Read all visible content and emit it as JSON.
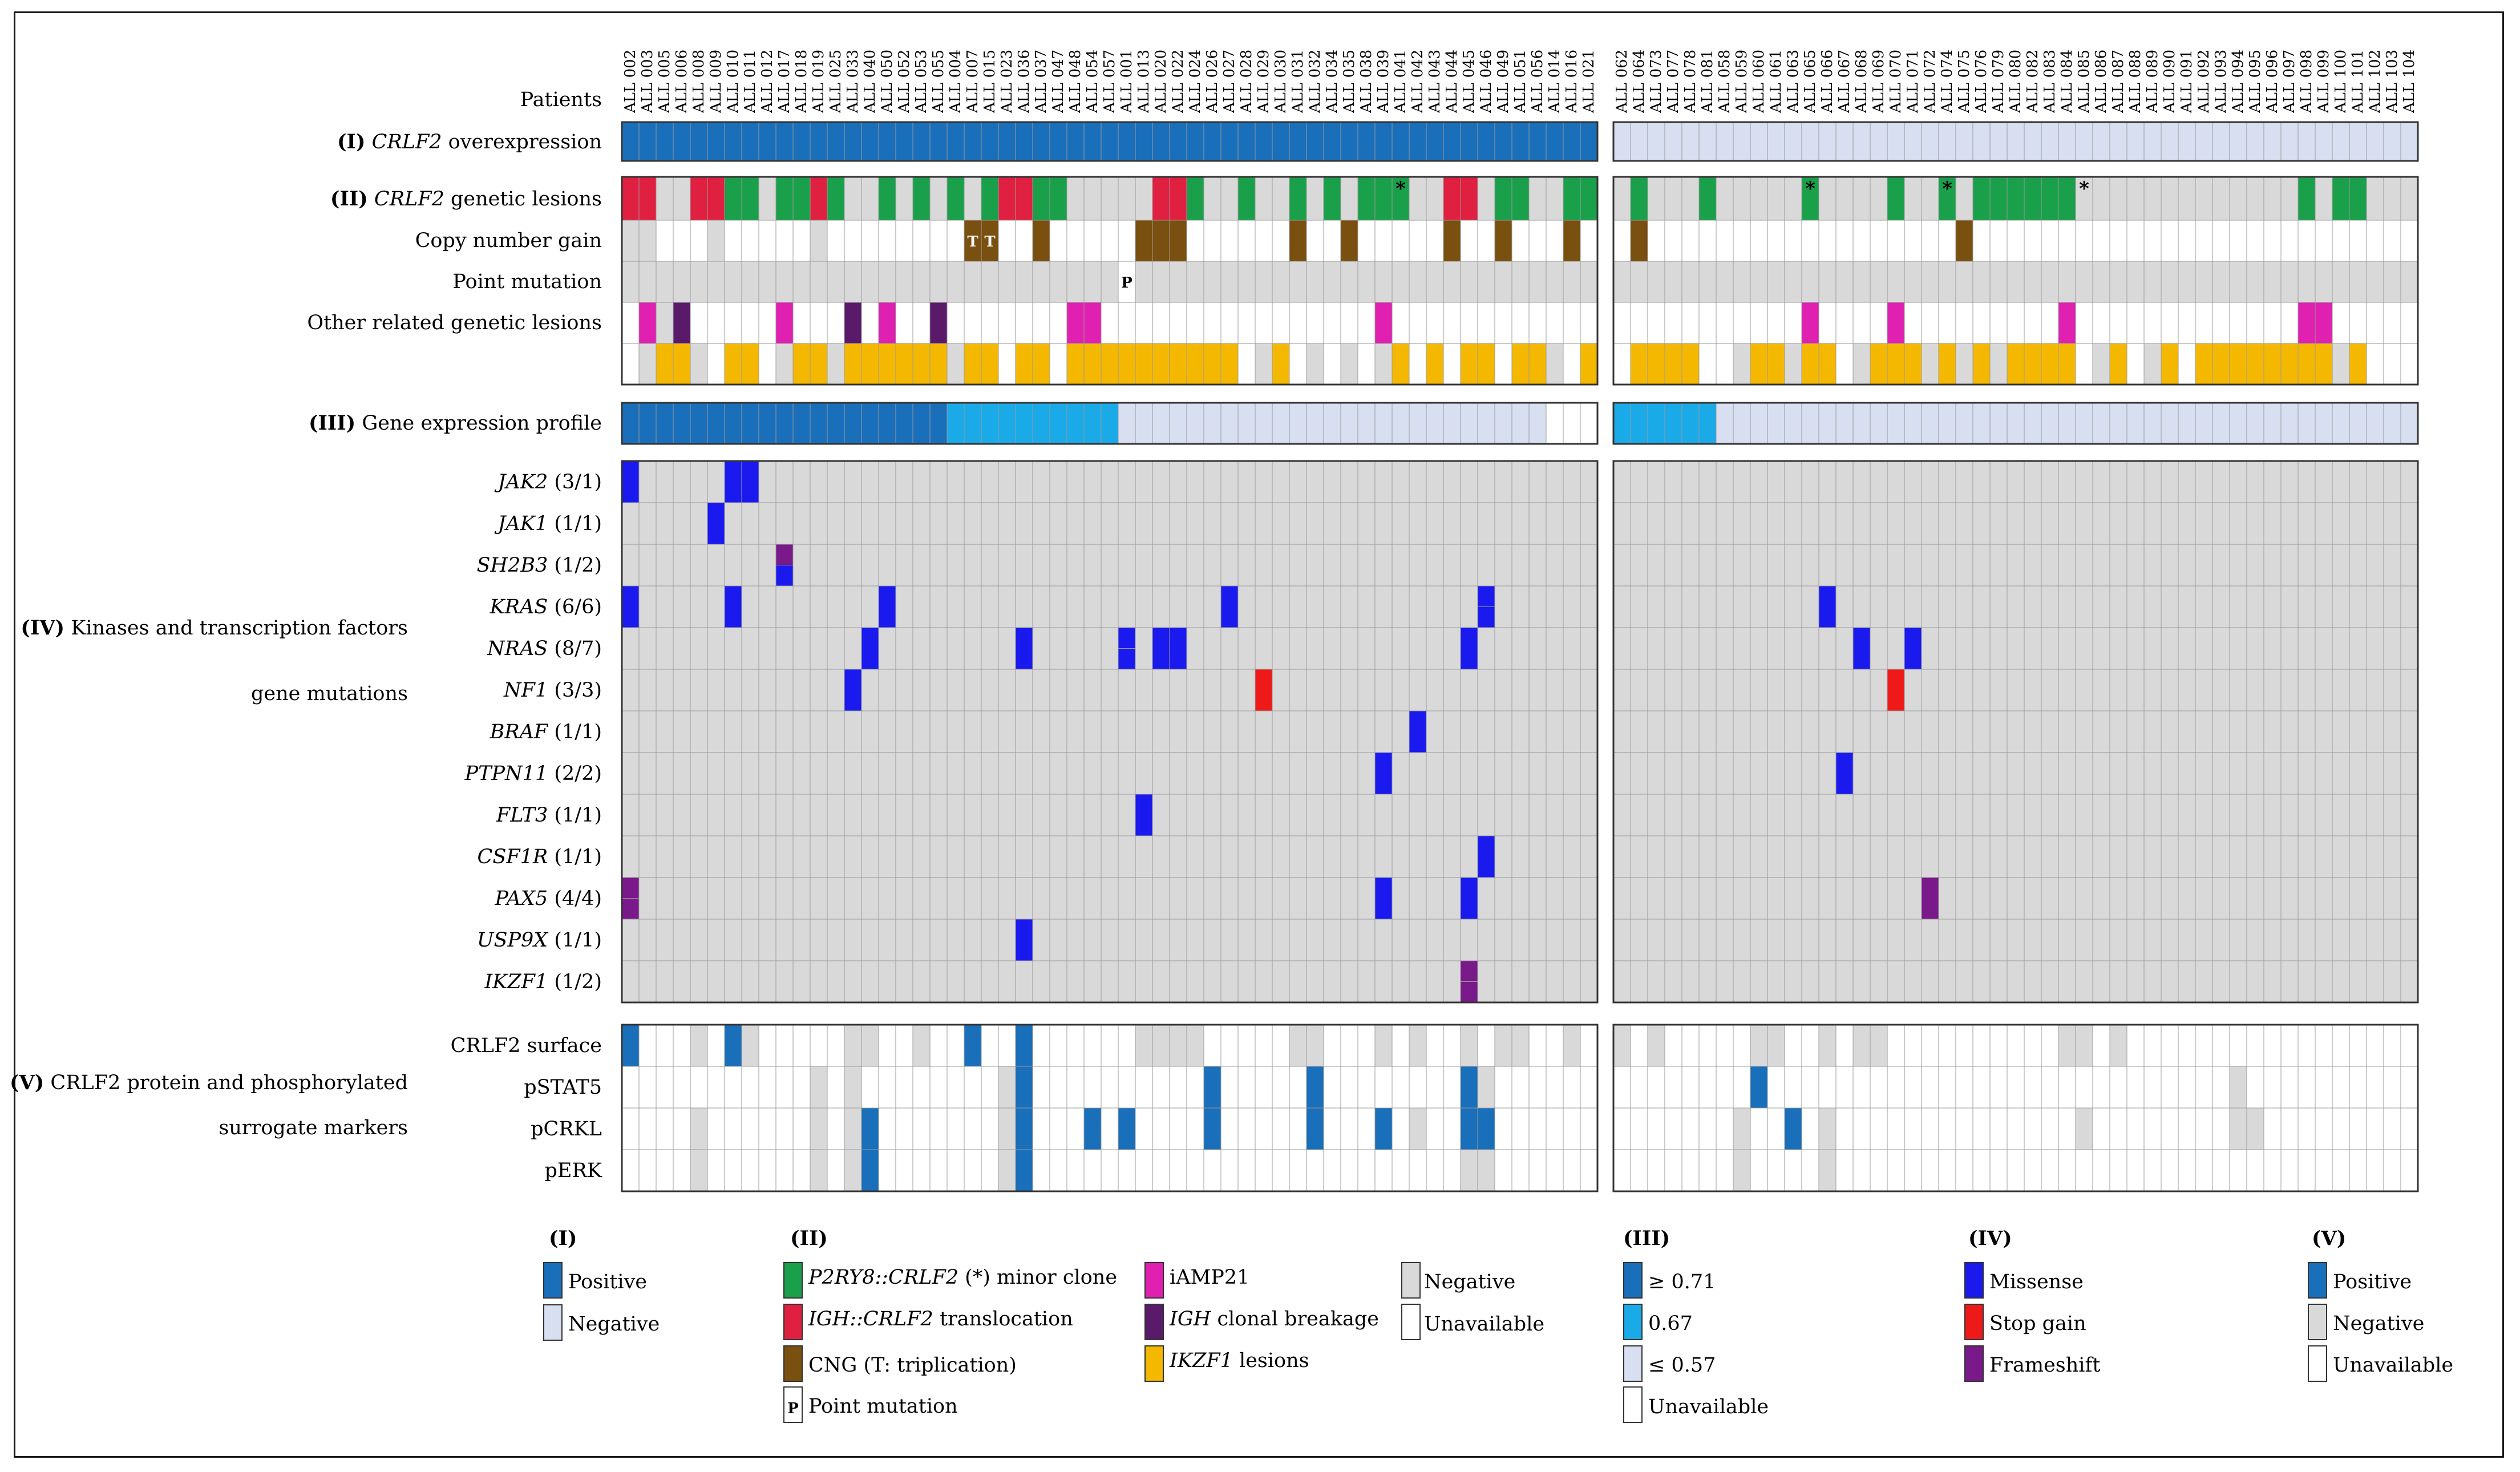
{
  "colors": {
    "crlf2_pos": "#1a6fba",
    "crlf2_neg": "#d8dff0",
    "gep_high": "#1a6fba",
    "gep_mid": "#1aaae8",
    "gep_low": "#d8dff0",
    "p2ry8": "#1aa04a",
    "igh_crlf2": "#e02040",
    "cng": "#7a5010",
    "iamp21": "#e020b0",
    "igh_break": "#5a1a6a",
    "ikzf1": "#f5b800",
    "missense": "#1a1aee",
    "stopgain": "#ee1a1a",
    "frameshift": "#7a1a8a",
    "gray": "#d9d9d9",
    "white": "#ffffff",
    "protein_pos": "#1a6fba"
  },
  "patients": {
    "label": "Patients",
    "group1": [
      "ALL 002",
      "ALL 003",
      "ALL 005",
      "ALL 006",
      "ALL 008",
      "ALL 009",
      "ALL 010",
      "ALL 011",
      "ALL 012",
      "ALL 017",
      "ALL 018",
      "ALL 019",
      "ALL 025",
      "ALL 033",
      "ALL 040",
      "ALL 050",
      "ALL 052",
      "ALL 053",
      "ALL 055",
      "ALL 004",
      "ALL 007",
      "ALL 015",
      "ALL 023",
      "ALL 036",
      "ALL 037",
      "ALL 047",
      "ALL 048",
      "ALL 054",
      "ALL 057",
      "ALL 001",
      "ALL 013",
      "ALL 020",
      "ALL 022",
      "ALL 024",
      "ALL 026",
      "ALL 027",
      "ALL 028",
      "ALL 029",
      "ALL 030",
      "ALL 031",
      "ALL 032",
      "ALL 034",
      "ALL 035",
      "ALL 038",
      "ALL 039",
      "ALL 041",
      "ALL 042",
      "ALL 043",
      "ALL 044",
      "ALL 045",
      "ALL 046",
      "ALL 049",
      "ALL 051",
      "ALL 056",
      "ALL 014",
      "ALL 016",
      "ALL 021"
    ],
    "group2": [
      "ALL 062",
      "ALL 064",
      "ALL 073",
      "ALL 077",
      "ALL 078",
      "ALL 081",
      "ALL 058",
      "ALL 059",
      "ALL 060",
      "ALL 061",
      "ALL 063",
      "ALL 065",
      "ALL 066",
      "ALL 067",
      "ALL 068",
      "ALL 069",
      "ALL 070",
      "ALL 071",
      "ALL 072",
      "ALL 074",
      "ALL 075",
      "ALL 076",
      "ALL 079",
      "ALL 080",
      "ALL 082",
      "ALL 083",
      "ALL 084",
      "ALL 085",
      "ALL 086",
      "ALL 087",
      "ALL 088",
      "ALL 089",
      "ALL 090",
      "ALL 091",
      "ALL 092",
      "ALL 093",
      "ALL 094",
      "ALL 095",
      "ALL 096",
      "ALL 097",
      "ALL 098",
      "ALL 099",
      "ALL 100",
      "ALL 101",
      "ALL 102",
      "ALL 103",
      "ALL 104"
    ]
  },
  "row_labels": {
    "sec1_num": "(I)",
    "sec1_gene": "CRLF2",
    "sec1_rest": "overexpression",
    "sec2_num": "(II)",
    "sec2_gene": "CRLF2",
    "sec2_rest": "genetic lesions",
    "copy_gain": "Copy number gain",
    "point_mut": "Point mutation",
    "other_related": "Other related genetic lesions",
    "sec3_num": "(III)",
    "sec3_rest": "Gene expression profile",
    "sec4_line1_num": "(IV)",
    "sec4_line1": "Kinases and transcription factors",
    "sec4_line2": "gene mutations",
    "sec5_line1_num": "(V)",
    "sec5_line1": "CRLF2 protein and phosphorylated",
    "sec5_line2": "surrogate markers",
    "genes": [
      {
        "name": "JAK2",
        "count": "(3/1)"
      },
      {
        "name": "JAK1",
        "count": "(1/1)"
      },
      {
        "name": "SH2B3",
        "count": "(1/2)"
      },
      {
        "name": "KRAS",
        "count": "(6/6)"
      },
      {
        "name": "NRAS",
        "count": "(8/7)"
      },
      {
        "name": "NF1",
        "count": "(3/3)"
      },
      {
        "name": "BRAF",
        "count": "(1/1)"
      },
      {
        "name": "PTPN11",
        "count": "(2/2)"
      },
      {
        "name": "FLT3",
        "count": "(1/1)"
      },
      {
        "name": "CSF1R",
        "count": "(1/1)"
      },
      {
        "name": "PAX5",
        "count": "(4/4)"
      },
      {
        "name": "USP9X",
        "count": "(1/1)"
      },
      {
        "name": "IKZF1",
        "count": "(1/2)"
      }
    ],
    "proteins": [
      "CRLF2 surface",
      "pSTAT5",
      "pCRKL",
      "pERK"
    ]
  },
  "chart_data": {
    "type": "heatmap",
    "title": "",
    "n_group1": 57,
    "n_group2": 47,
    "crlf2_overexpression": {
      "group1": "positive",
      "group2": "negative"
    },
    "crlf2_lesions": {
      "group1": "R R W W R R G G W G G R G W W G W G W G W G R R G G W W W W W R R G W W G W W G W G W G G G W W R R W G G W W G G",
      "group2": "W G W W W G W W W W W G W W W W G W W G W G G G G G G W W W W W W W W W W W W W G W G G W W",
      "minor_clone_marks": {
        "group1": [
          45
        ],
        "group2": [
          11,
          19,
          27
        ]
      }
    },
    "copy_number_gain": {
      "group1": "G G W W W G W W W W W G W W W W W W W W T T W W C W W W W W C C C W W W W W W C W W C W W W W W C W W C W W W C W",
      "group2": "W C W W W W W W W W W W W W W W W W W W C W W W W W W W W W W W W W W W W W W W W W W W W W W",
      "triplication_label": "T"
    },
    "point_mutation": {
      "group1_positive_index": 29,
      "label": "P"
    },
    "other_related_iamp21_igh": {
      "group1": "W I G B W W W W W I W W W B W I W W B W W W W W W W I I W W W W W W W W W W W W W W W W I W W W W W W W W W W W W",
      "group2": "W W W W W W W W W W W I W W W W I W W W W W W W W W I W W W W W W W W W W W W W I I W W W W W"
    },
    "other_related_ikzf1": {
      "group1": "W G Y Y G W Y Y W G Y Y G Y Y Y Y Y Y G Y Y W Y Y W Y Y Y Y Y Y Y Y Y Y W G Y W G W G W G Y W Y W Y Y W Y Y G W Y",
      "group2": "W Y Y Y Y W W G Y Y G Y Y W G Y Y Y G Y G Y G Y Y Y Y W G Y W G Y W Y Y Y Y Y Y Y Y G Y W W W"
    },
    "gene_expression_profile": {
      "group1_high": 19,
      "group1_mid": 10,
      "group1_low_until": 54,
      "group1_unavailable": 2,
      "group2_mid": 6
    },
    "mutations": [
      {
        "gene": "JAK2",
        "group1": [
          [
            0,
            "M"
          ],
          [
            6,
            "M"
          ],
          [
            7,
            "M"
          ]
        ],
        "group2": []
      },
      {
        "gene": "JAK1",
        "group1": [
          [
            5,
            "M"
          ]
        ],
        "group2": []
      },
      {
        "gene": "SH2B3",
        "group1": [
          [
            9,
            "F/M"
          ]
        ],
        "group2": []
      },
      {
        "gene": "KRAS",
        "group1": [
          [
            0,
            "M"
          ],
          [
            6,
            "M"
          ],
          [
            15,
            "M"
          ],
          [
            35,
            "M"
          ],
          [
            50,
            "M/M"
          ]
        ],
        "group2": [
          [
            12,
            "M"
          ]
        ]
      },
      {
        "gene": "NRAS",
        "group1": [
          [
            14,
            "M"
          ],
          [
            23,
            "M"
          ],
          [
            29,
            "M/M"
          ],
          [
            31,
            "M"
          ],
          [
            32,
            "M"
          ],
          [
            49,
            "M"
          ]
        ],
        "group2": [
          [
            14,
            "M"
          ],
          [
            17,
            "M"
          ]
        ]
      },
      {
        "gene": "NF1",
        "group1": [
          [
            13,
            "M"
          ],
          [
            37,
            "S"
          ]
        ],
        "group2": [
          [
            16,
            "S"
          ]
        ]
      },
      {
        "gene": "BRAF",
        "group1": [
          [
            46,
            "M"
          ]
        ],
        "group2": []
      },
      {
        "gene": "PTPN11",
        "group1": [
          [
            44,
            "M"
          ]
        ],
        "group2": [
          [
            13,
            "M"
          ]
        ]
      },
      {
        "gene": "FLT3",
        "group1": [
          [
            30,
            "M"
          ]
        ],
        "group2": []
      },
      {
        "gene": "CSF1R",
        "group1": [
          [
            50,
            "M"
          ]
        ],
        "group2": []
      },
      {
        "gene": "PAX5",
        "group1": [
          [
            0,
            "F/F"
          ],
          [
            44,
            "M"
          ],
          [
            49,
            "M"
          ]
        ],
        "group2": [
          [
            18,
            "F"
          ]
        ]
      },
      {
        "gene": "USP9X",
        "group1": [
          [
            23,
            "M"
          ]
        ],
        "group2": []
      },
      {
        "gene": "IKZF1",
        "group1": [
          [
            49,
            "F/F"
          ]
        ],
        "group2": []
      }
    ],
    "protein_markers": [
      {
        "marker": "CRLF2 surface",
        "group1": "P W W W G W P G W W W W W G G W W G W W P W W P W W W W W W G G G G W W W W W G G W W W G W G W W G W G G W W G W",
        "group2": "G W G W W W W W G G W W G W G G W W W W W W W W W W G G W G W W W W W W W W W W W W W W W W W"
      },
      {
        "marker": "pSTAT5",
        "group1": "W W W W W W W W W W W G W G W W W W W W W W G P W W W W W W W W W W P W W W W W P W W W W W W W W P G W W W W W W",
        "group2": "W W W W W W W W P W W W W W W W W W W W W W W W W W W W W W W W W W W W G W W W W W W W W W W"
      },
      {
        "marker": "pCRKL",
        "group1": "W W W W G W W W W W W G W G P W W W W W W W G P W W W P W P W W W W P W W W W W P W W W P W G W W P P W W W W W W",
        "group2": "W W W W W W W G W W P W G W W W W W W W W W W W W W W G W W W W W W W W G G W W W W W W W W W"
      },
      {
        "marker": "pERK",
        "group1": "W W W W G W W W W W W G W G P W W W W W W W G P W W W W W W W W W W W W W W W W W W W W W W W W W G G W W W W W W",
        "group2": "W W W W W W W G W W W W G W W W W W W W W W W W W W W W W W W W W W W W W W W W W W W W W W W"
      }
    ]
  },
  "legend": {
    "sec1": {
      "head": "(I)",
      "items": [
        "Positive",
        "Negative"
      ]
    },
    "sec2": {
      "head": "(II)",
      "p2ry8_gene": "P2RY8::CRLF2",
      "p2ry8_rest": "(*) minor clone",
      "igh_gene": "IGH::CRLF2",
      "igh_rest": "translocation",
      "cng": "CNG (T: triplication)",
      "point": "Point mutation",
      "point_mark": "P",
      "iamp21": "iAMP21",
      "ighb_gene": "IGH",
      "ighb_rest": "clonal breakage",
      "ikzf1_gene": "IKZF1",
      "ikzf1_rest": "lesions",
      "neg": "Negative",
      "unavail": "Unavailable"
    },
    "sec3": {
      "head": "(III)",
      "items": [
        "≥ 0.71",
        "0.67",
        "≤ 0.57",
        "Unavailable"
      ]
    },
    "sec4": {
      "head": "(IV)",
      "items": [
        "Missense",
        "Stop gain",
        "Frameshift"
      ]
    },
    "sec5": {
      "head": "(V)",
      "items": [
        "Positive",
        "Negative",
        "Unavailable"
      ]
    }
  }
}
